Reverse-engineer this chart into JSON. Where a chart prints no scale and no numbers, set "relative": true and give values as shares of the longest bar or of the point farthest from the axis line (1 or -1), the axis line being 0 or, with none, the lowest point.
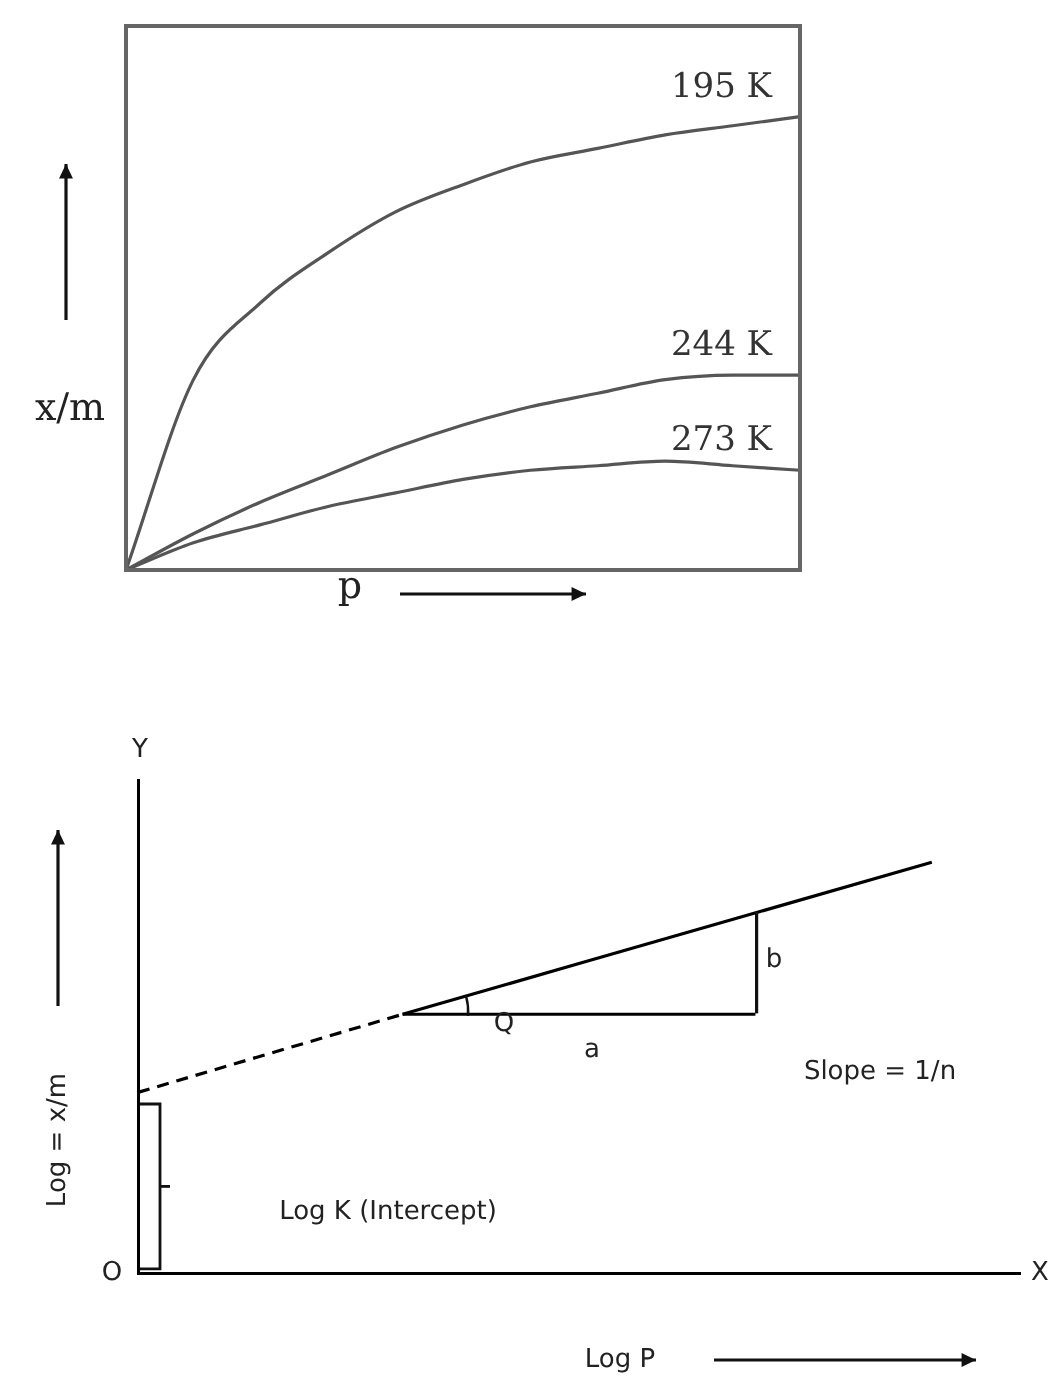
{
  "chart_data": [
    {
      "type": "line",
      "relative": true,
      "xlabel": "p",
      "ylabel": "x/m",
      "categories": [
        null,
        null,
        null,
        null,
        null,
        null,
        null,
        null,
        null,
        null,
        null
      ],
      "series": [
        {
          "name": "195 K",
          "color": "#555555",
          "values": [
            0,
            0.42,
            0.59,
            0.7,
            0.79,
            0.85,
            0.9,
            0.93,
            0.96,
            0.98,
            1
          ]
        },
        {
          "name": "244 K",
          "color": "#555555",
          "values": [
            0,
            0.08,
            0.15,
            0.21,
            0.27,
            0.32,
            0.36,
            0.39,
            0.42,
            0.43,
            0.43
          ]
        },
        {
          "name": "273 K",
          "color": "#555555",
          "values": [
            0,
            0.06,
            0.1,
            0.14,
            0.17,
            0.2,
            0.22,
            0.23,
            0.24,
            0.23,
            0.22
          ]
        }
      ],
      "grid": false,
      "legend": false,
      "marker": "none"
    },
    {
      "type": "line",
      "relative": true,
      "xlabel": "Log P",
      "ylabel": "Log = x/m",
      "categories": [
        null,
        null,
        null,
        null,
        null,
        null,
        null,
        null,
        null,
        null,
        null
      ],
      "series": [
        {
          "color": "#000000",
          "line_style": "dashed",
          "values": [
            0.44,
            null,
            null,
            0.63,
            null,
            null,
            null,
            null,
            null,
            null,
            null
          ]
        },
        {
          "color": "#000000",
          "line_style": "solid",
          "values": [
            null,
            null,
            null,
            0.63,
            null,
            null,
            null,
            null,
            null,
            1,
            null
          ]
        },
        {
          "color": "#000000",
          "line_style": "solid",
          "values": [
            null,
            null,
            null,
            0.63,
            null,
            null,
            null,
            0.63,
            null,
            null,
            null
          ]
        }
      ],
      "annotations": [
        "Y",
        "O",
        "X",
        "b",
        "a",
        "Q",
        "Slope = 1/n",
        "Log K (Intercept)"
      ],
      "grid": false,
      "legend": false,
      "marker": "none"
    }
  ]
}
